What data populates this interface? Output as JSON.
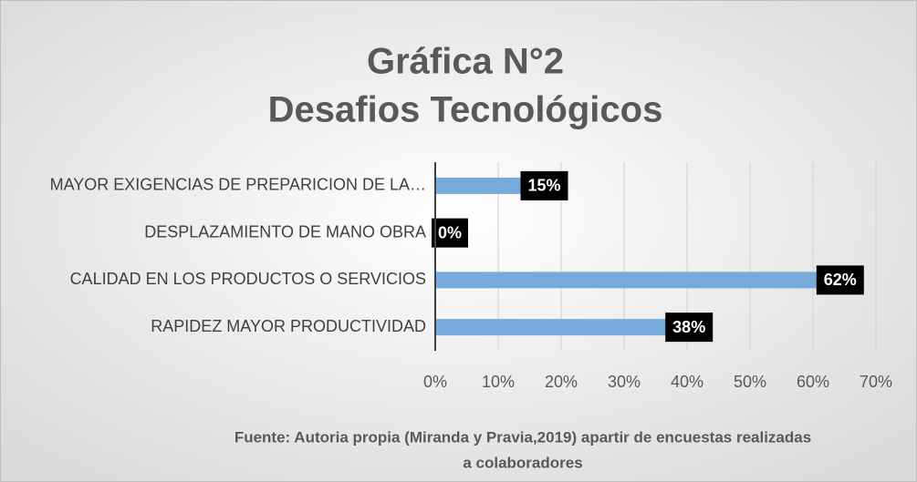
{
  "chart_data": {
    "type": "bar",
    "orientation": "horizontal",
    "title": [
      "Gráfica N°2",
      "Desafios Tecnológicos"
    ],
    "categories": [
      "MAYOR EXIGENCIAS DE PREPARICION DE LA…",
      "DESPLAZAMIENTO DE MANO OBRA",
      "CALIDAD EN LOS PRODUCTOS O SERVICIOS",
      "RAPIDEZ MAYOR PRODUCTIVIDAD"
    ],
    "values": [
      15,
      0,
      62,
      38
    ],
    "value_labels": [
      "15%",
      "0%",
      "62%",
      "38%"
    ],
    "color": "#75aadb",
    "xlim": [
      0,
      70
    ],
    "xticks": [
      {
        "value": 0,
        "label": "0%"
      },
      {
        "value": 10,
        "label": "10%"
      },
      {
        "value": 20,
        "label": "20%"
      },
      {
        "value": 30,
        "label": "30%"
      },
      {
        "value": 40,
        "label": "40%"
      },
      {
        "value": 50,
        "label": "50%"
      },
      {
        "value": 60,
        "label": "60%"
      },
      {
        "value": 70,
        "label": "70%"
      }
    ],
    "grid": true,
    "caption": [
      "Fuente: Autoria propia (Miranda y Pravia,2019) apartir de encuestas realizadas",
      "a colaboradores"
    ]
  }
}
